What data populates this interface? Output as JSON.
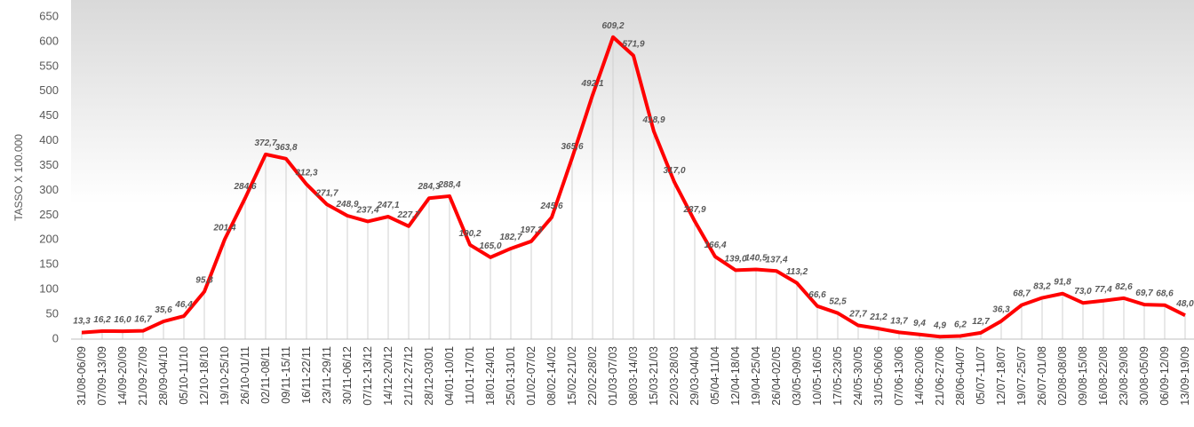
{
  "chart_data": {
    "type": "line",
    "y_label": "TASSO X 100.000",
    "categories": [
      "31/08-06/09",
      "07/09-13/09",
      "14/09-20/09",
      "21/09-27/09",
      "28/09-04/10",
      "05/10-11/10",
      "12/10-18/10",
      "19/10-25/10",
      "26/10-01/11",
      "02/11-08/11",
      "09/11-15/11",
      "16/11-22/11",
      "23/11-29/11",
      "30/11-06/12",
      "07/12-13/12",
      "14/12-20/12",
      "21/12-27/12",
      "28/12-03/01",
      "04/01-10/01",
      "11/01-17/01",
      "18/01-24/01",
      "25/01-31/01",
      "01/02-07/02",
      "08/02-14/02",
      "15/02-21/02",
      "22/02-28/02",
      "01/03-07/03",
      "08/03-14/03",
      "15/03-21/03",
      "22/03-28/03",
      "29/03-04/04",
      "05/04-11/04",
      "12/04-18/04",
      "19/04-25/04",
      "26/04-02/05",
      "03/05-09/05",
      "10/05-16/05",
      "17/05-23/05",
      "24/05-30/05",
      "31/05-06/06",
      "07/06-13/06",
      "14/06-20/06",
      "21/06-27/06",
      "28/06-04/07",
      "05/07-11/07",
      "12/07-18/07",
      "19/07-25/07",
      "26/07-01/08",
      "02/08-08/08",
      "09/08-15/08",
      "16/08-22/08",
      "23/08-29/08",
      "30/08-05/09",
      "06/09-12/09",
      "13/09-19/09"
    ],
    "series": [
      {
        "color": "#ff0000",
        "values": [
          13.3,
          16.2,
          16.0,
          16.7,
          35.6,
          46.4,
          95.8,
          201.4,
          284.6,
          372.7,
          363.8,
          312.3,
          271.7,
          248.9,
          237.4,
          247.1,
          227.7,
          284.3,
          288.4,
          190.2,
          165.0,
          182.7,
          197.3,
          245.6,
          365.6,
          492.1,
          609.2,
          571.9,
          418.9,
          317.0,
          237.9,
          166.4,
          139.0,
          140.5,
          137.4,
          113.2,
          66.6,
          52.5,
          27.7,
          21.2,
          13.7,
          9.4,
          4.9,
          6.2,
          12.7,
          36.3,
          68.7,
          83.2,
          91.8,
          73.0,
          77.4,
          82.6,
          69.7,
          68.6,
          48.0
        ],
        "value_labels": [
          "13,3",
          "16,2",
          "16,0",
          "16,7",
          "35,6",
          "46,4",
          "95,8",
          "201,4",
          "284,6",
          "372,7",
          "363,8",
          "312,3",
          "271,7",
          "248,9",
          "237,4",
          "247,1",
          "227,7",
          "284,3",
          "288,4",
          "190,2",
          "165,0",
          "182,7",
          "197,3",
          "245,6",
          "365,6",
          "492,1",
          "609,2",
          "571,9",
          "418,9",
          "317,0",
          "237,9",
          "166,4",
          "139,0",
          "140,5",
          "137,4",
          "113,2",
          "66,6",
          "52,5",
          "27,7",
          "21,2",
          "13,7",
          "9,4",
          "4,9",
          "6,2",
          "12,7",
          "36,3",
          "68,7",
          "83,2",
          "91,8",
          "73,0",
          "77,4",
          "82,6",
          "69,7",
          "68,6",
          "48,0"
        ]
      }
    ],
    "ylim": [
      0,
      650
    ],
    "yticks": [
      0,
      50,
      100,
      150,
      200,
      250,
      300,
      350,
      400,
      450,
      500,
      550,
      600,
      650
    ]
  }
}
